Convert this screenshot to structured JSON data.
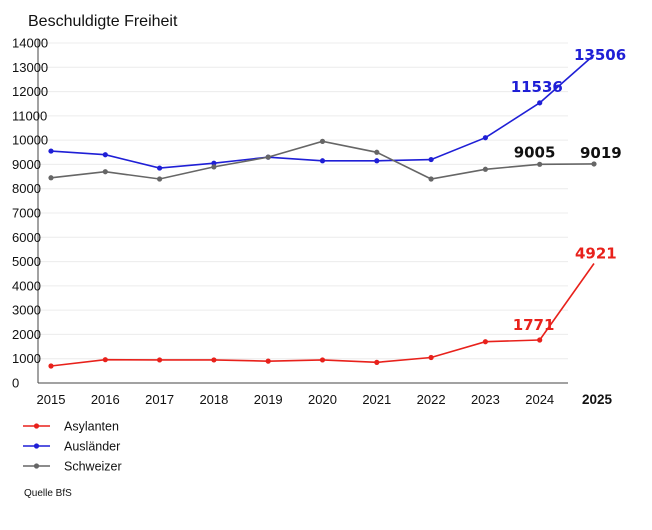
{
  "chart_data": {
    "type": "line",
    "title": "Beschuldigte Freiheit",
    "xlabel": "",
    "ylabel": "",
    "x": [
      "2015",
      "2016",
      "2017",
      "2018",
      "2019",
      "2020",
      "2021",
      "2022",
      "2023",
      "2024",
      "2025"
    ],
    "x_bold": [
      "2025"
    ],
    "y_ticks": [
      0,
      1000,
      2000,
      3000,
      4000,
      5000,
      6000,
      7000,
      8000,
      9000,
      10000,
      11000,
      12000,
      13000,
      14000
    ],
    "y_tick_labels": [
      "0",
      "1000",
      "2000",
      "3000",
      "4000",
      "5000",
      "6000",
      "7000",
      "8000",
      "9000",
      "10000",
      "11000",
      "12000",
      "13000",
      "14000"
    ],
    "ylim": [
      0,
      14000
    ],
    "grid": true,
    "series": [
      {
        "name": "Asylanten",
        "color": "#e8211b",
        "values": [
          700,
          960,
          950,
          950,
          900,
          950,
          850,
          1050,
          1700,
          1771,
          null
        ],
        "projection": [
          1771,
          4921
        ]
      },
      {
        "name": "Ausländer",
        "color": "#1f1fd6",
        "values": [
          9550,
          9400,
          8850,
          9050,
          9300,
          9150,
          9150,
          9200,
          10100,
          11536,
          null
        ],
        "projection": [
          11536,
          13506
        ]
      },
      {
        "name": "Schweizer",
        "color": "#666666",
        "values": [
          8450,
          8700,
          8400,
          8900,
          9300,
          9950,
          9500,
          8400,
          8800,
          9005,
          9019
        ]
      }
    ],
    "annotations": [
      {
        "text": "13506",
        "color": "#1f1fd6",
        "x": "2025",
        "y": 13506
      },
      {
        "text": "11536",
        "color": "#1f1fd6",
        "x": "2024",
        "y": 11536
      },
      {
        "text": "9005",
        "color": "#111111",
        "x": "2024",
        "y": 9005
      },
      {
        "text": "9019",
        "color": "#111111",
        "x": "2025",
        "y": 9019
      },
      {
        "text": "4921",
        "color": "#e8211b",
        "x": "2025",
        "y": 4921
      },
      {
        "text": "1771",
        "color": "#e8211b",
        "x": "2024",
        "y": 1771
      }
    ],
    "legend_position": "bottom-left",
    "source": "Quelle BfS"
  }
}
